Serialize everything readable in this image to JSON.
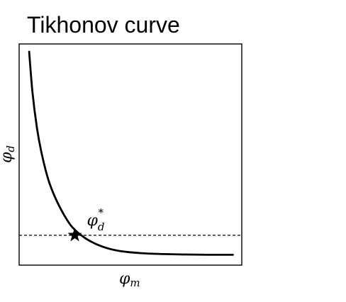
{
  "chart_data": {
    "type": "line",
    "title": "Tikhonov curve",
    "xlabel": "φ",
    "xlabel_sub": "m",
    "ylabel": "φ",
    "ylabel_sub": "d",
    "xlim": [
      0,
      1
    ],
    "ylim": [
      0,
      1
    ],
    "grid": false,
    "axis_ticks": false,
    "series": [
      {
        "style": "solid",
        "color": "#000000",
        "x": [
          0.045,
          0.06,
          0.08,
          0.1,
          0.13,
          0.16,
          0.2,
          0.24,
          0.3,
          0.37,
          0.45,
          0.55,
          0.65,
          0.75,
          0.85,
          0.96
        ],
        "y": [
          0.965,
          0.78,
          0.62,
          0.51,
          0.39,
          0.31,
          0.23,
          0.17,
          0.12,
          0.085,
          0.064,
          0.054,
          0.05,
          0.048,
          0.047,
          0.047
        ]
      }
    ],
    "reference_line": {
      "orientation": "horizontal",
      "style": "dashed",
      "y": 0.135
    },
    "highlight_point": {
      "marker": "star",
      "x": 0.25,
      "y": 0.135,
      "label": "φ",
      "label_sub": "d",
      "label_sup": "*"
    },
    "colors": {
      "line": "#000000",
      "frame": "#000000",
      "background": "#ffffff"
    }
  }
}
